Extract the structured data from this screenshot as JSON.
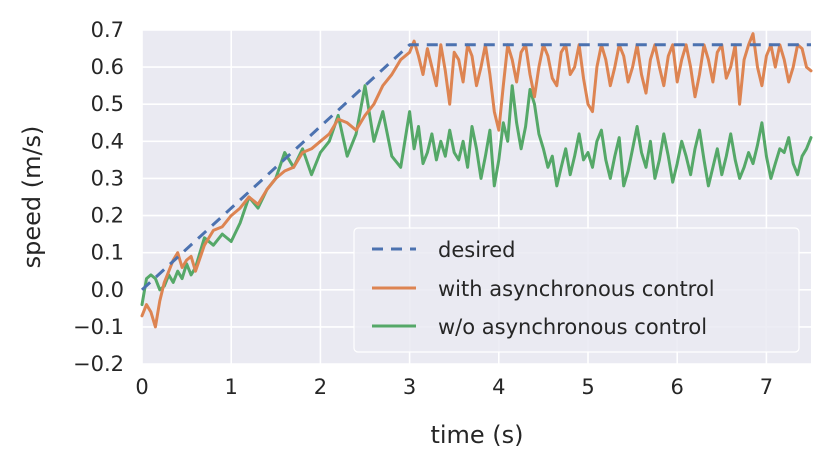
{
  "chart_data": {
    "type": "line",
    "xlabel": "time (s)",
    "ylabel": "speed (m/s)",
    "xlim": [
      0,
      7.5
    ],
    "ylim": [
      -0.2,
      0.7
    ],
    "xticks": [
      "0",
      "1",
      "2",
      "3",
      "4",
      "5",
      "6",
      "7"
    ],
    "yticks": [
      "−0.2",
      "−0.1",
      "0.0",
      "0.1",
      "0.2",
      "0.3",
      "0.4",
      "0.5",
      "0.6",
      "0.7"
    ],
    "grid": true,
    "legend_position": "lower-right",
    "series": [
      {
        "name": "desired",
        "color": "#4c72b0",
        "dash": true,
        "x": [
          0,
          3.0,
          7.5
        ],
        "y": [
          0,
          0.66,
          0.66
        ]
      },
      {
        "name": "with asynchronous control",
        "color": "#dd8452",
        "dash": false,
        "x": [
          0,
          0.05,
          0.1,
          0.15,
          0.2,
          0.25,
          0.3,
          0.35,
          0.4,
          0.45,
          0.5,
          0.55,
          0.6,
          0.7,
          0.8,
          0.9,
          1.0,
          1.1,
          1.2,
          1.3,
          1.4,
          1.5,
          1.6,
          1.7,
          1.8,
          1.9,
          2.0,
          2.1,
          2.2,
          2.3,
          2.4,
          2.5,
          2.6,
          2.7,
          2.8,
          2.9,
          3.0,
          3.05,
          3.1,
          3.15,
          3.2,
          3.25,
          3.3,
          3.35,
          3.4,
          3.45,
          3.5,
          3.55,
          3.6,
          3.65,
          3.7,
          3.75,
          3.8,
          3.85,
          3.9,
          3.95,
          4.0,
          4.05,
          4.1,
          4.15,
          4.2,
          4.25,
          4.3,
          4.35,
          4.4,
          4.45,
          4.5,
          4.55,
          4.6,
          4.65,
          4.7,
          4.75,
          4.8,
          4.85,
          4.9,
          4.95,
          5.0,
          5.05,
          5.1,
          5.15,
          5.2,
          5.25,
          5.3,
          5.35,
          5.4,
          5.45,
          5.5,
          5.55,
          5.6,
          5.65,
          5.7,
          5.75,
          5.8,
          5.85,
          5.9,
          5.95,
          6.0,
          6.05,
          6.1,
          6.15,
          6.2,
          6.25,
          6.3,
          6.35,
          6.4,
          6.45,
          6.5,
          6.55,
          6.6,
          6.65,
          6.7,
          6.75,
          6.8,
          6.85,
          6.9,
          6.95,
          7.0,
          7.05,
          7.1,
          7.15,
          7.2,
          7.25,
          7.3,
          7.35,
          7.4,
          7.45,
          7.5
        ],
        "y": [
          -0.07,
          -0.04,
          -0.06,
          -0.1,
          -0.03,
          0.02,
          0.05,
          0.08,
          0.1,
          0.06,
          0.08,
          0.09,
          0.05,
          0.12,
          0.16,
          0.17,
          0.2,
          0.22,
          0.25,
          0.23,
          0.27,
          0.3,
          0.32,
          0.33,
          0.37,
          0.38,
          0.4,
          0.42,
          0.46,
          0.45,
          0.43,
          0.47,
          0.5,
          0.55,
          0.58,
          0.62,
          0.64,
          0.67,
          0.63,
          0.58,
          0.65,
          0.6,
          0.55,
          0.66,
          0.59,
          0.5,
          0.64,
          0.62,
          0.56,
          0.66,
          0.63,
          0.55,
          0.6,
          0.66,
          0.58,
          0.48,
          0.43,
          0.55,
          0.66,
          0.62,
          0.56,
          0.64,
          0.66,
          0.58,
          0.52,
          0.6,
          0.66,
          0.63,
          0.57,
          0.55,
          0.64,
          0.66,
          0.58,
          0.6,
          0.66,
          0.57,
          0.5,
          0.48,
          0.6,
          0.66,
          0.62,
          0.55,
          0.6,
          0.66,
          0.63,
          0.56,
          0.6,
          0.66,
          0.58,
          0.53,
          0.62,
          0.66,
          0.6,
          0.55,
          0.63,
          0.66,
          0.56,
          0.62,
          0.66,
          0.6,
          0.52,
          0.58,
          0.66,
          0.62,
          0.56,
          0.64,
          0.66,
          0.57,
          0.6,
          0.66,
          0.5,
          0.62,
          0.66,
          0.69,
          0.6,
          0.55,
          0.63,
          0.66,
          0.6,
          0.66,
          0.62,
          0.56,
          0.6,
          0.66,
          0.65,
          0.6,
          0.59
        ]
      },
      {
        "name": "w/o asynchronous control",
        "color": "#55a868",
        "dash": false,
        "x": [
          0,
          0.05,
          0.1,
          0.15,
          0.2,
          0.25,
          0.3,
          0.35,
          0.4,
          0.45,
          0.5,
          0.55,
          0.6,
          0.7,
          0.8,
          0.9,
          1.0,
          1.1,
          1.2,
          1.3,
          1.4,
          1.5,
          1.6,
          1.7,
          1.8,
          1.9,
          2.0,
          2.1,
          2.2,
          2.3,
          2.4,
          2.5,
          2.6,
          2.7,
          2.8,
          2.9,
          3.0,
          3.05,
          3.1,
          3.15,
          3.2,
          3.25,
          3.3,
          3.35,
          3.4,
          3.45,
          3.5,
          3.55,
          3.6,
          3.65,
          3.7,
          3.75,
          3.8,
          3.85,
          3.9,
          3.95,
          4.0,
          4.05,
          4.1,
          4.15,
          4.2,
          4.25,
          4.3,
          4.35,
          4.4,
          4.45,
          4.5,
          4.55,
          4.6,
          4.65,
          4.7,
          4.75,
          4.8,
          4.85,
          4.9,
          4.95,
          5.0,
          5.05,
          5.1,
          5.15,
          5.2,
          5.25,
          5.3,
          5.35,
          5.4,
          5.45,
          5.5,
          5.55,
          5.6,
          5.65,
          5.7,
          5.75,
          5.8,
          5.85,
          5.9,
          5.95,
          6.0,
          6.05,
          6.1,
          6.15,
          6.2,
          6.25,
          6.3,
          6.35,
          6.4,
          6.45,
          6.5,
          6.55,
          6.6,
          6.65,
          6.7,
          6.75,
          6.8,
          6.85,
          6.9,
          6.95,
          7.0,
          7.05,
          7.1,
          7.15,
          7.2,
          7.25,
          7.3,
          7.35,
          7.4,
          7.45,
          7.5
        ],
        "y": [
          -0.04,
          0.03,
          0.04,
          0.03,
          0.0,
          0.01,
          0.04,
          0.02,
          0.05,
          0.03,
          0.07,
          0.04,
          0.06,
          0.14,
          0.12,
          0.15,
          0.13,
          0.18,
          0.25,
          0.22,
          0.27,
          0.3,
          0.37,
          0.33,
          0.38,
          0.31,
          0.37,
          0.4,
          0.47,
          0.36,
          0.42,
          0.55,
          0.4,
          0.48,
          0.36,
          0.33,
          0.48,
          0.38,
          0.44,
          0.34,
          0.37,
          0.42,
          0.35,
          0.4,
          0.36,
          0.43,
          0.37,
          0.35,
          0.4,
          0.33,
          0.44,
          0.38,
          0.3,
          0.36,
          0.43,
          0.28,
          0.35,
          0.45,
          0.4,
          0.55,
          0.45,
          0.38,
          0.44,
          0.54,
          0.5,
          0.42,
          0.38,
          0.33,
          0.36,
          0.28,
          0.33,
          0.38,
          0.31,
          0.36,
          0.42,
          0.35,
          0.37,
          0.33,
          0.4,
          0.43,
          0.35,
          0.3,
          0.36,
          0.41,
          0.28,
          0.32,
          0.38,
          0.44,
          0.37,
          0.33,
          0.4,
          0.3,
          0.35,
          0.42,
          0.36,
          0.29,
          0.34,
          0.4,
          0.36,
          0.31,
          0.38,
          0.43,
          0.35,
          0.28,
          0.33,
          0.38,
          0.31,
          0.36,
          0.42,
          0.35,
          0.3,
          0.33,
          0.37,
          0.34,
          0.39,
          0.45,
          0.36,
          0.3,
          0.34,
          0.38,
          0.37,
          0.41,
          0.34,
          0.31,
          0.36,
          0.38,
          0.41
        ]
      }
    ]
  }
}
